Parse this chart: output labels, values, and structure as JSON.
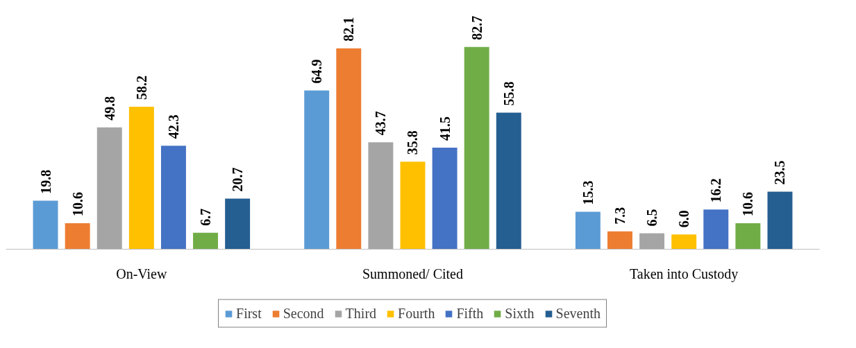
{
  "chart_data": {
    "type": "bar",
    "categories": [
      "On-View",
      "Summoned/ Cited",
      "Taken into Custody"
    ],
    "series": [
      {
        "name": "First",
        "color": "#5b9bd5",
        "values": [
          19.8,
          64.9,
          15.3
        ],
        "value_labels": [
          "19.8",
          "64.9",
          "15.3"
        ]
      },
      {
        "name": "Second",
        "color": "#ed7d31",
        "values": [
          10.6,
          82.1,
          7.3
        ],
        "value_labels": [
          "10.6",
          "82.1",
          "7.3"
        ]
      },
      {
        "name": "Third",
        "color": "#a5a5a5",
        "values": [
          49.8,
          43.7,
          6.5
        ],
        "value_labels": [
          "49.8",
          "43.7",
          "6.5"
        ]
      },
      {
        "name": "Fourth",
        "color": "#ffc000",
        "values": [
          58.2,
          35.8,
          6.0
        ],
        "value_labels": [
          "58.2",
          "35.8",
          "6.0"
        ]
      },
      {
        "name": "Fifth",
        "color": "#4472c4",
        "values": [
          42.3,
          41.5,
          16.2
        ],
        "value_labels": [
          "42.3",
          "41.5",
          "16.2"
        ]
      },
      {
        "name": "Sixth",
        "color": "#70ad47",
        "values": [
          6.7,
          82.7,
          10.6
        ],
        "value_labels": [
          "6.7",
          "82.7",
          "10.6"
        ]
      },
      {
        "name": "Seventh",
        "color": "#255e91",
        "values": [
          20.7,
          55.8,
          23.5
        ],
        "value_labels": [
          "20.7",
          "55.8",
          "23.5"
        ]
      }
    ],
    "legend": "bottom",
    "grid": false
  }
}
